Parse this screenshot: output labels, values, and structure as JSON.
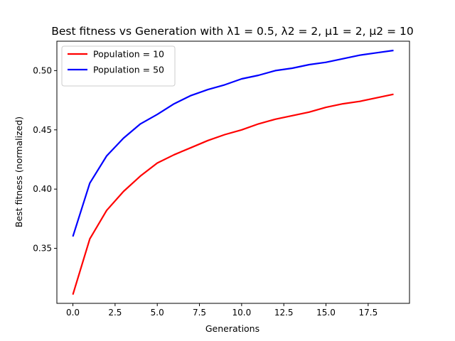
{
  "chart_data": {
    "type": "line",
    "title": "Best fitness vs Generation with λ1 = 0.5, λ2 = 2, μ1 = 2, μ2 = 10",
    "xlabel": "Generations",
    "ylabel": "Best fitness (normalized)",
    "xlim": [
      -0.95,
      19.95
    ],
    "ylim": [
      0.3036,
      0.5248
    ],
    "xticks": [
      0.0,
      2.5,
      5.0,
      7.5,
      10.0,
      12.5,
      15.0,
      17.5
    ],
    "xtick_labels": [
      "0.0",
      "2.5",
      "5.0",
      "7.5",
      "10.0",
      "12.5",
      "15.0",
      "17.5"
    ],
    "yticks": [
      0.35,
      0.4,
      0.45,
      0.5
    ],
    "ytick_labels": [
      "0.35",
      "0.40",
      "0.45",
      "0.50"
    ],
    "grid": false,
    "legend_position": "top-left",
    "x": [
      0,
      1,
      2,
      3,
      4,
      5,
      6,
      7,
      8,
      9,
      10,
      11,
      12,
      13,
      14,
      15,
      16,
      17,
      18,
      19
    ],
    "series": [
      {
        "name": "Population = 10",
        "color": "#ff0000",
        "values": [
          0.311,
          0.358,
          0.382,
          0.398,
          0.411,
          0.422,
          0.429,
          0.435,
          0.441,
          0.446,
          0.45,
          0.455,
          0.459,
          0.462,
          0.465,
          0.469,
          0.472,
          0.474,
          0.477,
          0.48
        ]
      },
      {
        "name": "Population = 50",
        "color": "#0000ff",
        "values": [
          0.36,
          0.405,
          0.428,
          0.443,
          0.455,
          0.463,
          0.472,
          0.479,
          0.484,
          0.488,
          0.493,
          0.496,
          0.5,
          0.502,
          0.505,
          0.507,
          0.51,
          0.513,
          0.515,
          0.517
        ]
      }
    ]
  }
}
